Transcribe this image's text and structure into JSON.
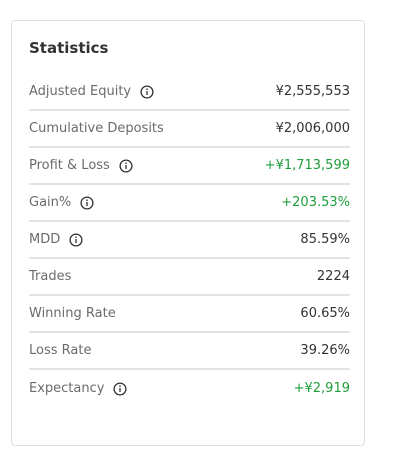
{
  "card": {
    "title": "Statistics"
  },
  "colors": {
    "positive": "#1f9d3a",
    "label": "#6b6b6b",
    "value": "#333333",
    "divider": "#e3e3e3"
  },
  "rows": [
    {
      "label": "Adjusted Equity",
      "value": "¥2,555,553",
      "info": true,
      "positive": false
    },
    {
      "label": "Cumulative Deposits",
      "value": "¥2,006,000",
      "info": false,
      "positive": false
    },
    {
      "label": "Profit & Loss",
      "value": "+¥1,713,599",
      "info": true,
      "positive": true
    },
    {
      "label": "Gain%",
      "value": "+203.53%",
      "info": true,
      "positive": true
    },
    {
      "label": "MDD",
      "value": "85.59%",
      "info": true,
      "positive": false
    },
    {
      "label": "Trades",
      "value": "2224",
      "info": false,
      "positive": false
    },
    {
      "label": "Winning Rate",
      "value": "60.65%",
      "info": false,
      "positive": false
    },
    {
      "label": "Loss Rate",
      "value": "39.26%",
      "info": false,
      "positive": false
    },
    {
      "label": "Expectancy",
      "value": "+¥2,919",
      "info": true,
      "positive": true
    }
  ],
  "icons": {
    "info": "info-circle-icon"
  }
}
